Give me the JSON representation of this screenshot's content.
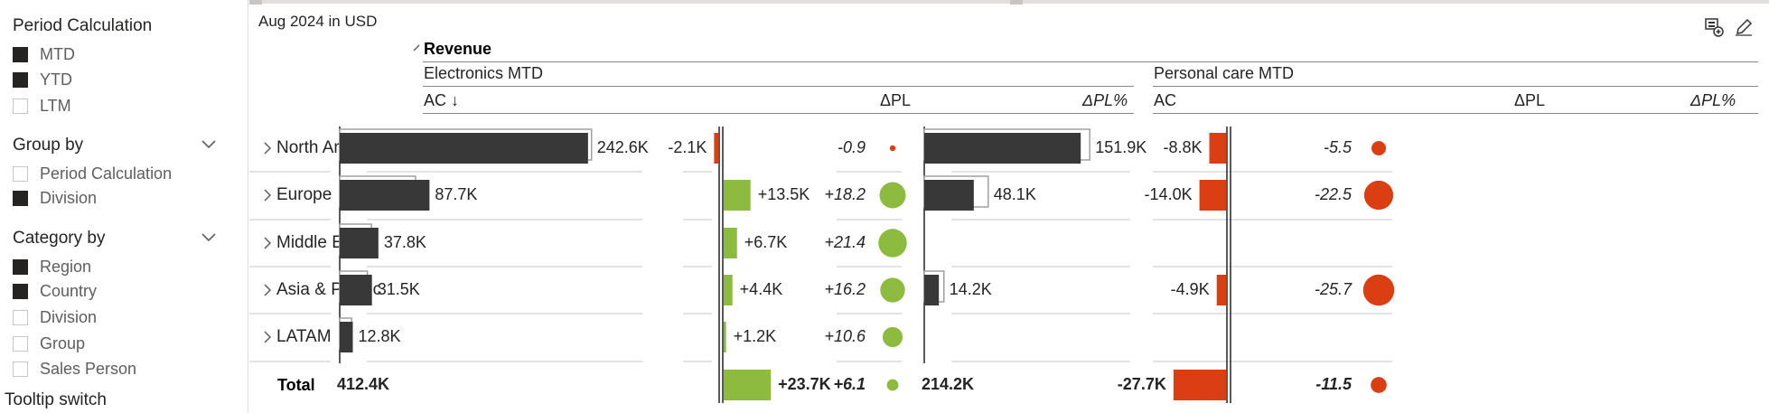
{
  "filters": {
    "period_calculation": {
      "title": "Period Calculation",
      "options": [
        {
          "label": "MTD",
          "checked": true
        },
        {
          "label": "YTD",
          "checked": true
        },
        {
          "label": "LTM",
          "checked": false
        }
      ]
    },
    "group_by": {
      "title": "Group by",
      "options": [
        {
          "label": "Period Calculation",
          "checked": false
        },
        {
          "label": "Division",
          "checked": true
        }
      ]
    },
    "category_by": {
      "title": "Category by",
      "options": [
        {
          "label": "Region",
          "checked": true
        },
        {
          "label": "Country",
          "checked": true
        },
        {
          "label": "Division",
          "checked": false
        },
        {
          "label": "Group",
          "checked": false
        },
        {
          "label": "Sales Person",
          "checked": false
        }
      ]
    },
    "tooltip_switch": {
      "title": "Tooltip switch"
    }
  },
  "visual": {
    "subtitle": "Aug 2024 in USD",
    "measure_title": "Revenue",
    "icons": [
      "insert-visual-icon",
      "edit-pen-icon"
    ],
    "colors": {
      "ac_bar": "#383838",
      "positive": "#8cbb3f",
      "negative": "#db3e12",
      "py_outline": "#a0a0a0"
    },
    "groups": [
      {
        "title": "Electronics MTD",
        "columns": {
          "ac": "AC ↓",
          "dpl": "ΔPL",
          "dplp": "ΔPL%"
        },
        "rows": [
          {
            "ac": 242.6,
            "py": 246,
            "ac_label": "242.6K",
            "dpl": -2.1,
            "dpl_label": "-2.1K",
            "dplp": -0.9,
            "dplp_label": "-0.9"
          },
          {
            "ac": 87.7,
            "py": 74,
            "ac_label": "87.7K",
            "dpl": 13.5,
            "dpl_label": "+13.5K",
            "dplp": 18.2,
            "dplp_label": "+18.2"
          },
          {
            "ac": 37.8,
            "py": 31,
            "ac_label": "37.8K",
            "dpl": 6.7,
            "dpl_label": "+6.7K",
            "dplp": 21.4,
            "dplp_label": "+21.4"
          },
          {
            "ac": 31.5,
            "py": 27,
            "ac_label": "31.5K",
            "dpl": 4.4,
            "dpl_label": "+4.4K",
            "dplp": 16.2,
            "dplp_label": "+16.2"
          },
          {
            "ac": 12.8,
            "py": 11.6,
            "ac_label": "12.8K",
            "dpl": 1.2,
            "dpl_label": "+1.2K",
            "dplp": 10.6,
            "dplp_label": "+10.6"
          }
        ],
        "total": {
          "ac_label": "412.4K",
          "dpl": 23.7,
          "dpl_label": "+23.7K",
          "dplp": 6.1,
          "dplp_label": "+6.1"
        }
      },
      {
        "title": "Personal care MTD",
        "columns": {
          "ac": "AC",
          "dpl": "ΔPL",
          "dplp": "ΔPL%"
        },
        "rows": [
          {
            "ac": 151.9,
            "py": 160.7,
            "ac_label": "151.9K",
            "dpl": -8.8,
            "dpl_label": "-8.8K",
            "dplp": -5.5,
            "dplp_label": "-5.5"
          },
          {
            "ac": 48.1,
            "py": 62.1,
            "ac_label": "48.1K",
            "dpl": -14.0,
            "dpl_label": "-14.0K",
            "dplp": -22.5,
            "dplp_label": "-22.5"
          },
          null,
          {
            "ac": 14.2,
            "py": 19.1,
            "ac_label": "14.2K",
            "dpl": -4.9,
            "dpl_label": "-4.9K",
            "dplp": -25.7,
            "dplp_label": "-25.7"
          },
          null
        ],
        "total": {
          "ac_label": "214.2K",
          "dpl": -27.7,
          "dpl_label": "-27.7K",
          "dplp": -11.5,
          "dplp_label": "-11.5"
        }
      }
    ],
    "categories": [
      "North America",
      "Europe",
      "Middle East",
      "Asia & Pacific",
      "LATAM"
    ],
    "total_label": "Total"
  }
}
